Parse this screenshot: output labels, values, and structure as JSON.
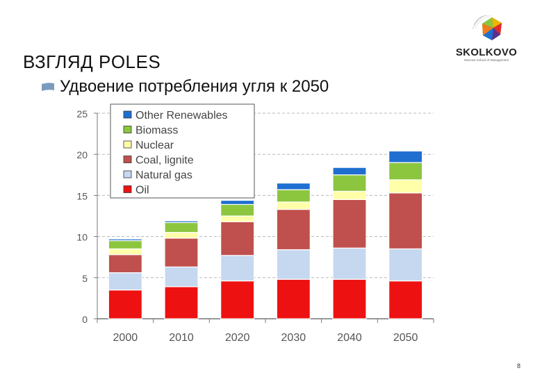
{
  "header": {
    "title": "ВЗГЛЯД POLES",
    "subtitle": "Удвоение потребления угля к 2050"
  },
  "logo": {
    "name": "SKOLKOVO",
    "tagline": "Moscow School of Management"
  },
  "page_number": "8",
  "chart_data": {
    "type": "bar",
    "stacked": true,
    "categories": [
      "2000",
      "2010",
      "2020",
      "2030",
      "2040",
      "2050"
    ],
    "series": [
      {
        "name": "Oil",
        "color": "#ee1111",
        "values": [
          3.5,
          3.9,
          4.6,
          4.8,
          4.8,
          4.6
        ]
      },
      {
        "name": "Natural gas",
        "color": "#c6d8f0",
        "values": [
          2.1,
          2.4,
          3.1,
          3.6,
          3.8,
          3.9
        ]
      },
      {
        "name": "Coal, lignite",
        "color": "#c0504d",
        "values": [
          2.2,
          3.5,
          4.1,
          4.9,
          5.9,
          6.8
        ]
      },
      {
        "name": "Nuclear",
        "color": "#ffffaa",
        "values": [
          0.7,
          0.7,
          0.7,
          0.9,
          1.0,
          1.6
        ]
      },
      {
        "name": "Biomass",
        "color": "#8cc63f",
        "values": [
          1.0,
          1.2,
          1.4,
          1.5,
          2.0,
          2.1
        ]
      },
      {
        "name": "Other Renewables",
        "color": "#1f6fd1",
        "values": [
          0.2,
          0.2,
          0.5,
          0.8,
          0.9,
          1.4
        ]
      }
    ],
    "yticks": [
      "0",
      "5",
      "10",
      "15",
      "20",
      "25"
    ],
    "ylim": [
      0,
      25
    ],
    "grid": "horizontal-dashed",
    "legend_position": "top-left"
  }
}
